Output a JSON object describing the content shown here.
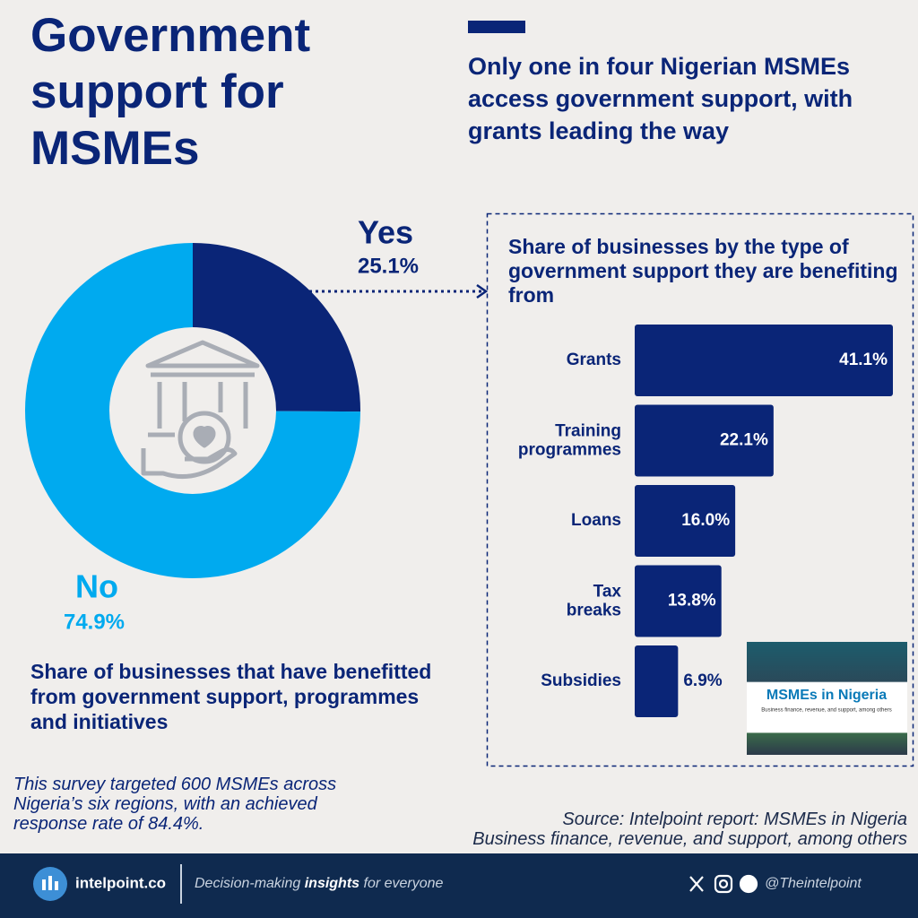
{
  "title": "Government support for MSMEs",
  "subtitle": "Only one in four Nigerian MSMEs access government support, with grants leading the way",
  "chart_data": [
    {
      "type": "donut",
      "title": "Share of businesses that have benefitted from government support, programmes and initiatives",
      "categories": [
        "Yes",
        "No"
      ],
      "values": [
        25.1,
        74.9
      ],
      "value_labels": [
        "25.1%",
        "74.9%"
      ],
      "colors": [
        "#0a2577",
        "#00aaef"
      ]
    },
    {
      "type": "bar",
      "title": "Share of businesses by the type of government support they are benefiting from",
      "categories": [
        "Grants",
        "Training programmes",
        "Loans",
        "Tax breaks",
        "Subsidies"
      ],
      "values": [
        41.1,
        22.1,
        16.0,
        13.8,
        6.9
      ],
      "value_labels": [
        "41.1%",
        "22.1%",
        "16.0%",
        "13.8%",
        "6.9%"
      ],
      "color": "#0a2577"
    }
  ],
  "note": "This survey targeted 600 MSMEs across Nigeria’s six regions, with an achieved response rate of 84.4%.",
  "source": [
    "Source: Intelpoint report: MSMEs in Nigeria",
    "Business finance, revenue, and support, among others"
  ],
  "thumbnail": {
    "title": "MSMEs in Nigeria",
    "subtitle": "Business finance, revenue, and support, among others"
  },
  "footer": {
    "brand": "intelpoint.co",
    "tagline": [
      "Decision-making ",
      "insights",
      " for everyone"
    ],
    "handle": "@Theintelpoint"
  }
}
